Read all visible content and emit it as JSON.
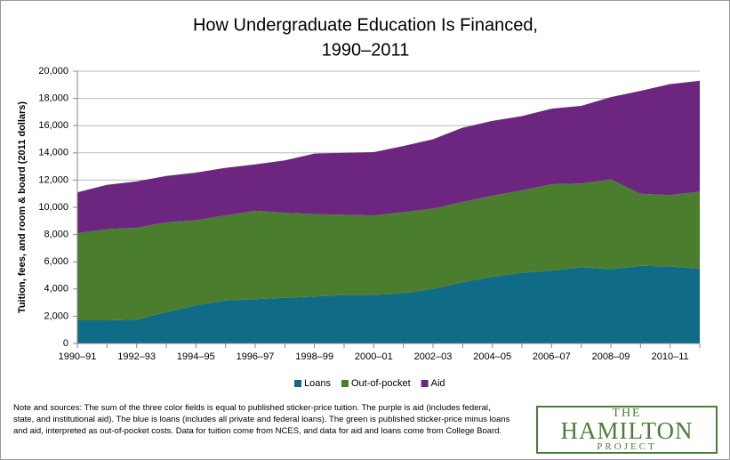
{
  "chart_data": {
    "type": "stacked-area",
    "title": [
      "How Undergraduate Education Is Financed,",
      "1990–2011"
    ],
    "y_label": "Tuition, fees, and room & board (2011 dollars)",
    "categories": [
      "1990–91",
      null,
      "1992–93",
      null,
      "1994–95",
      null,
      "1996–97",
      null,
      "1998–99",
      null,
      "2000–01",
      null,
      "2002–03",
      null,
      "2004–05",
      null,
      "2006–07",
      null,
      "2008–09",
      null,
      "2010–11",
      null
    ],
    "series": [
      {
        "name": "Loans",
        "color": "#106b86",
        "values": [
          1700,
          1700,
          1750,
          2300,
          2800,
          3150,
          3250,
          3350,
          3450,
          3550,
          3550,
          3700,
          4000,
          4500,
          4900,
          5200,
          5350,
          5600,
          5450,
          5700,
          5650,
          5500
        ]
      },
      {
        "name": "Out-of-pocket",
        "color": "#4a7d2e",
        "values": [
          6400,
          6700,
          6750,
          6600,
          6250,
          6250,
          6500,
          6250,
          6050,
          5900,
          5850,
          5950,
          5900,
          5900,
          5950,
          6050,
          6350,
          6150,
          6600,
          5300,
          5250,
          5650
        ]
      },
      {
        "name": "Aid",
        "color": "#6c2680",
        "values": [
          3000,
          3250,
          3400,
          3400,
          3500,
          3500,
          3400,
          3850,
          4450,
          4550,
          4650,
          4850,
          5100,
          5450,
          5500,
          5450,
          5550,
          5700,
          6050,
          7550,
          8150,
          8150
        ]
      }
    ],
    "ylim": [
      0,
      20000
    ],
    "yticks": [
      0,
      {
        "value": 2000,
        "label": "2,000"
      },
      {
        "value": 4000,
        "label": "4,000"
      },
      {
        "value": 6000,
        "label": "6,000"
      },
      {
        "value": 8000,
        "label": "8,000"
      },
      {
        "value": 10000,
        "label": "10,000"
      },
      {
        "value": 12000,
        "label": "12,000"
      },
      {
        "value": 14000,
        "label": "14,000"
      },
      {
        "value": 16000,
        "label": "16,000"
      },
      {
        "value": 18000,
        "label": "18,000"
      },
      {
        "value": 20000,
        "label": "20,000"
      }
    ],
    "grid": true,
    "legend": "bottom"
  },
  "note": "Note and sources: The sum of the three color fields is equal to published sticker-price tuition. The purple is aid (includes federal, state, and institutional aid). The blue is loans (includes all private and federal loans). The green is published sticker-price minus loans and aid, interpreted as out-of-pocket costs. Data for tuition come from NCES, and data for aid and loans come from College Board.",
  "logo": {
    "line1": "THE",
    "line2": "HAMILTON",
    "line3": "PROJECT"
  }
}
